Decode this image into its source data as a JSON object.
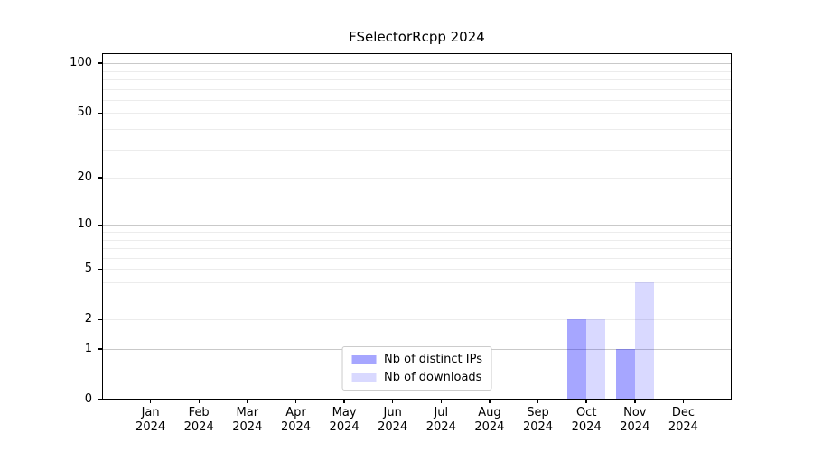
{
  "chart_data": {
    "type": "bar",
    "title": "FSelectorRcpp 2024",
    "categories": [
      "Jan 2024",
      "Feb 2024",
      "Mar 2024",
      "Apr 2024",
      "May 2024",
      "Jun 2024",
      "Jul 2024",
      "Aug 2024",
      "Sep 2024",
      "Oct 2024",
      "Nov 2024",
      "Dec 2024"
    ],
    "series": [
      {
        "name": "Nb of distinct IPs",
        "color": "#0000ff59",
        "values": [
          0,
          0,
          0,
          0,
          0,
          0,
          0,
          0,
          0,
          2,
          1,
          0
        ]
      },
      {
        "name": "Nb of downloads",
        "color": "#0000ff26",
        "values": [
          0,
          0,
          0,
          0,
          0,
          0,
          0,
          0,
          0,
          2,
          4,
          0
        ]
      }
    ],
    "xlabel": "",
    "ylabel": "",
    "y_scale": "log1p",
    "ylim": [
      0,
      115
    ],
    "y_ticks": [
      0,
      1,
      2,
      5,
      10,
      20,
      50,
      100
    ],
    "y_gridlines_major": [
      1,
      10,
      100
    ],
    "y_gridlines_minor": [
      2,
      3,
      4,
      5,
      6,
      7,
      8,
      9,
      20,
      30,
      40,
      50,
      60,
      70,
      80,
      90
    ],
    "grid": true,
    "legend_position": "lower center"
  },
  "styles": {
    "background": "#ffffff",
    "bar_dark": "#0000ff59",
    "bar_light": "#0000ff26",
    "grid_major": "#c9c9c9",
    "grid_minor": "#ececec",
    "spine": "#000000",
    "legend_border": "#cccccc"
  }
}
